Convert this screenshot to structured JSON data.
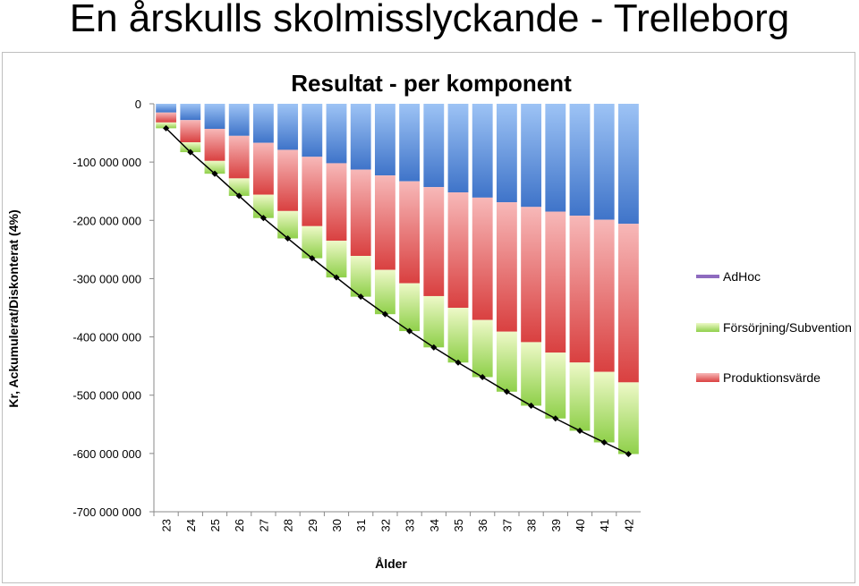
{
  "slide": {
    "title": "En årskulls skolmisslyckande - Trelleborg"
  },
  "colors": {
    "blue_top": "#9dc3f5",
    "blue_bottom": "#3f74c9",
    "red_top": "#f7b8b8",
    "red_bottom": "#d94040",
    "green_top": "#eef9c8",
    "green_bottom": "#8fd04a",
    "purple": "#8e6bbf",
    "line": "#000000"
  },
  "chart_data": {
    "type": "bar",
    "title": "Resultat - per komponent",
    "xlabel": "Ålder",
    "ylabel": "Kr, Ackumulerat/Diskonterat (4%)",
    "ylim": [
      -700000000,
      0
    ],
    "yticks": [
      0,
      -100000000,
      -200000000,
      -300000000,
      -400000000,
      -500000000,
      -600000000,
      -700000000
    ],
    "ytick_labels": [
      "0",
      "-100 000 000",
      "-200 000 000",
      "-300 000 000",
      "-400 000 000",
      "-500 000 000",
      "-600 000 000",
      "-700 000 000"
    ],
    "categories": [
      "23",
      "24",
      "25",
      "26",
      "27",
      "28",
      "29",
      "30",
      "31",
      "32",
      "33",
      "34",
      "35",
      "36",
      "37",
      "38",
      "39",
      "40",
      "41",
      "42"
    ],
    "stack_order": [
      "unlabeled",
      "Produktionsvärde",
      "Försörjning/Subvention",
      "AdHoc"
    ],
    "series": [
      {
        "values": [
          -15000000,
          -28000000,
          -43000000,
          -55000000,
          -67000000,
          -79000000,
          -91000000,
          -102000000,
          -113000000,
          -123000000,
          -133000000,
          -143000000,
          -152000000,
          -161000000,
          -169000000,
          -177000000,
          -185000000,
          -192000000,
          -199000000,
          -206000000
        ]
      },
      {
        "name": "Produktionsvärde",
        "values": [
          -17000000,
          -38000000,
          -55000000,
          -73000000,
          -89000000,
          -105000000,
          -119000000,
          -133000000,
          -148000000,
          -162000000,
          -175000000,
          -187000000,
          -198000000,
          -210000000,
          -222000000,
          -232000000,
          -242000000,
          -252000000,
          -261000000,
          -272000000
        ]
      },
      {
        "name": "Försörjning/Subvention",
        "values": [
          -10000000,
          -17000000,
          -22000000,
          -30000000,
          -40000000,
          -47000000,
          -55000000,
          -63000000,
          -70000000,
          -76000000,
          -82000000,
          -88000000,
          -94000000,
          -98000000,
          -103000000,
          -109000000,
          -113000000,
          -117000000,
          -121000000,
          -123000000
        ]
      },
      {
        "name": "AdHoc",
        "values": [
          0,
          0,
          0,
          0,
          0,
          0,
          0,
          0,
          0,
          0,
          0,
          0,
          0,
          0,
          0,
          0,
          0,
          0,
          0,
          0
        ]
      }
    ],
    "total_line": {
      "values": [
        -42000000,
        -83000000,
        -120000000,
        -158000000,
        -196000000,
        -231000000,
        -265000000,
        -298000000,
        -331000000,
        -361000000,
        -390000000,
        -418000000,
        -444000000,
        -469000000,
        -494000000,
        -518000000,
        -540000000,
        -561000000,
        -581000000,
        -601000000
      ]
    },
    "legend": {
      "position": "right",
      "items": [
        "AdHoc",
        "Försörjning/Subvention",
        "Produktionsvärde"
      ]
    },
    "grid": false
  }
}
